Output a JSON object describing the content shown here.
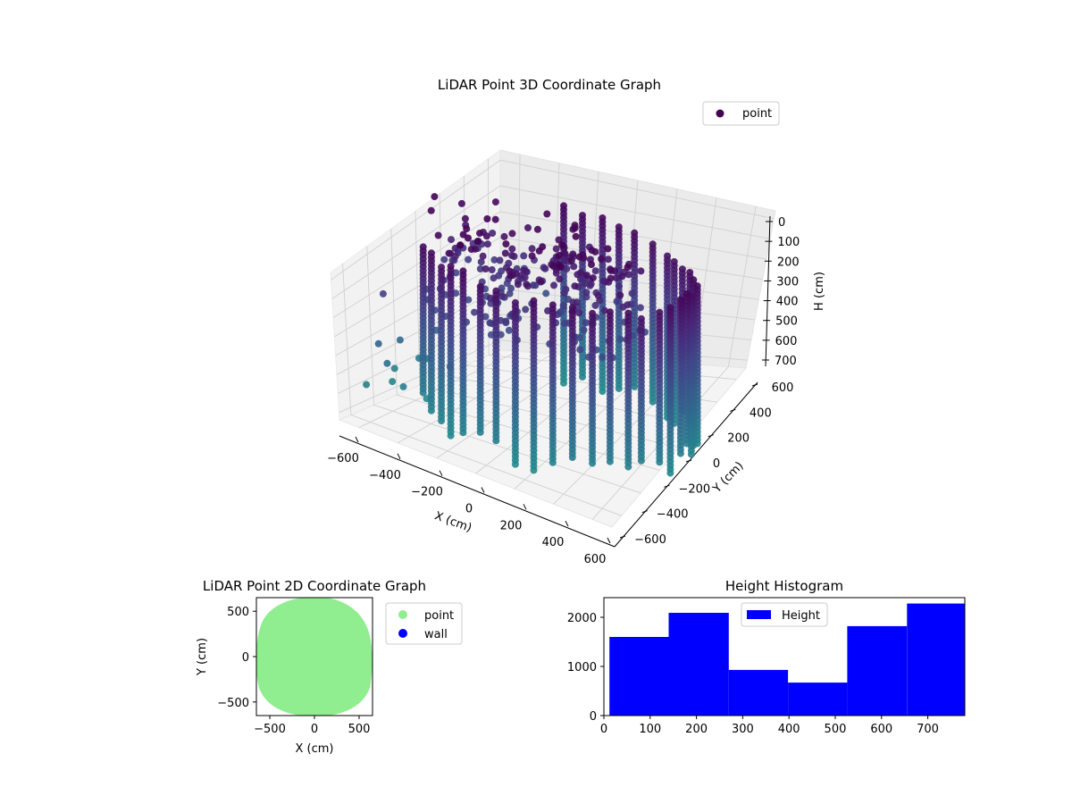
{
  "chart_data": [
    {
      "type": "scatter",
      "projection": "3d",
      "title": "LiDAR Point 3D Coordinate Graph",
      "xlabel": "X (cm)",
      "ylabel": "Y (cm)",
      "zlabel": "H (cm)",
      "xticks": [
        "−600",
        "−400",
        "−200",
        "0",
        "200",
        "400",
        "600"
      ],
      "yticks": [
        "600",
        "400",
        "200",
        "0",
        "−200",
        "−400",
        "−600"
      ],
      "zticks": [
        "0",
        "100",
        "200",
        "300",
        "400",
        "500",
        "600",
        "700"
      ],
      "xlim": [
        -650,
        650
      ],
      "ylim": [
        -650,
        650
      ],
      "zlim": [
        0,
        780
      ],
      "z_inverted": true,
      "colormap": "viridis",
      "legend": {
        "entries": [
          {
            "label": "point",
            "color": "#440154"
          }
        ],
        "placement": "upper-right"
      },
      "series": [
        {
          "name": "point",
          "description": "curved wall of points, roughly a semicircular ring of radius ~550 cm plus scattered interior points",
          "sample_points": [
            {
              "x": -600,
              "y": 150,
              "h": 20
            },
            {
              "x": -500,
              "y": 350,
              "h": 50
            },
            {
              "x": -300,
              "y": 500,
              "h": 30
            },
            {
              "x": 0,
              "y": 580,
              "h": 20
            },
            {
              "x": 300,
              "y": 500,
              "h": 30
            },
            {
              "x": 500,
              "y": 300,
              "h": 40
            },
            {
              "x": 580,
              "y": 0,
              "h": 60
            },
            {
              "x": 500,
              "y": -300,
              "h": 100
            },
            {
              "x": 300,
              "y": -480,
              "h": 150
            },
            {
              "x": 50,
              "y": -560,
              "h": 200
            },
            {
              "x": 580,
              "y": 0,
              "h": 700
            },
            {
              "x": 300,
              "y": -480,
              "h": 730
            },
            {
              "x": 0,
              "y": -560,
              "h": 730
            },
            {
              "x": -100,
              "y": -100,
              "h": 250
            },
            {
              "x": -200,
              "y": 100,
              "h": 150
            },
            {
              "x": -400,
              "y": -200,
              "h": 600
            }
          ]
        }
      ]
    },
    {
      "type": "scatter",
      "title": "LiDAR Point 2D Coordinate Graph",
      "xlabel": "X (cm)",
      "ylabel": "Y (cm)",
      "xticks": [
        "−500",
        "0",
        "500"
      ],
      "yticks": [
        "500",
        "0",
        "−500"
      ],
      "xlim": [
        -650,
        650
      ],
      "ylim": [
        -650,
        650
      ],
      "legend": {
        "entries": [
          {
            "label": "point",
            "color": "#90ee90"
          },
          {
            "label": "wall",
            "color": "#0000ff"
          }
        ],
        "placement": "outside right"
      },
      "series": [
        {
          "name": "point",
          "color": "#90ee90",
          "shape": "filled disc approx. radius 620 cm centered near (0,0)"
        },
        {
          "name": "wall",
          "color": "#0000ff",
          "points": []
        }
      ]
    },
    {
      "type": "bar",
      "subtype": "histogram",
      "title": "Height Histogram",
      "xlim": [
        0,
        780
      ],
      "ylim": [
        0,
        2400
      ],
      "xticks": [
        "0",
        "100",
        "200",
        "300",
        "400",
        "500",
        "600",
        "700"
      ],
      "yticks": [
        "0",
        "1000",
        "2000"
      ],
      "bar_color": "#0000ff",
      "legend": {
        "entries": [
          {
            "label": "Height",
            "color": "#0000ff"
          }
        ],
        "placement": "upper-center"
      },
      "bins": [
        {
          "start": 12,
          "end": 140,
          "count": 1600
        },
        {
          "start": 140,
          "end": 270,
          "count": 2090
        },
        {
          "start": 270,
          "end": 398,
          "count": 930
        },
        {
          "start": 398,
          "end": 526,
          "count": 670
        },
        {
          "start": 526,
          "end": 655,
          "count": 1820
        },
        {
          "start": 655,
          "end": 780,
          "count": 2280
        }
      ]
    }
  ]
}
